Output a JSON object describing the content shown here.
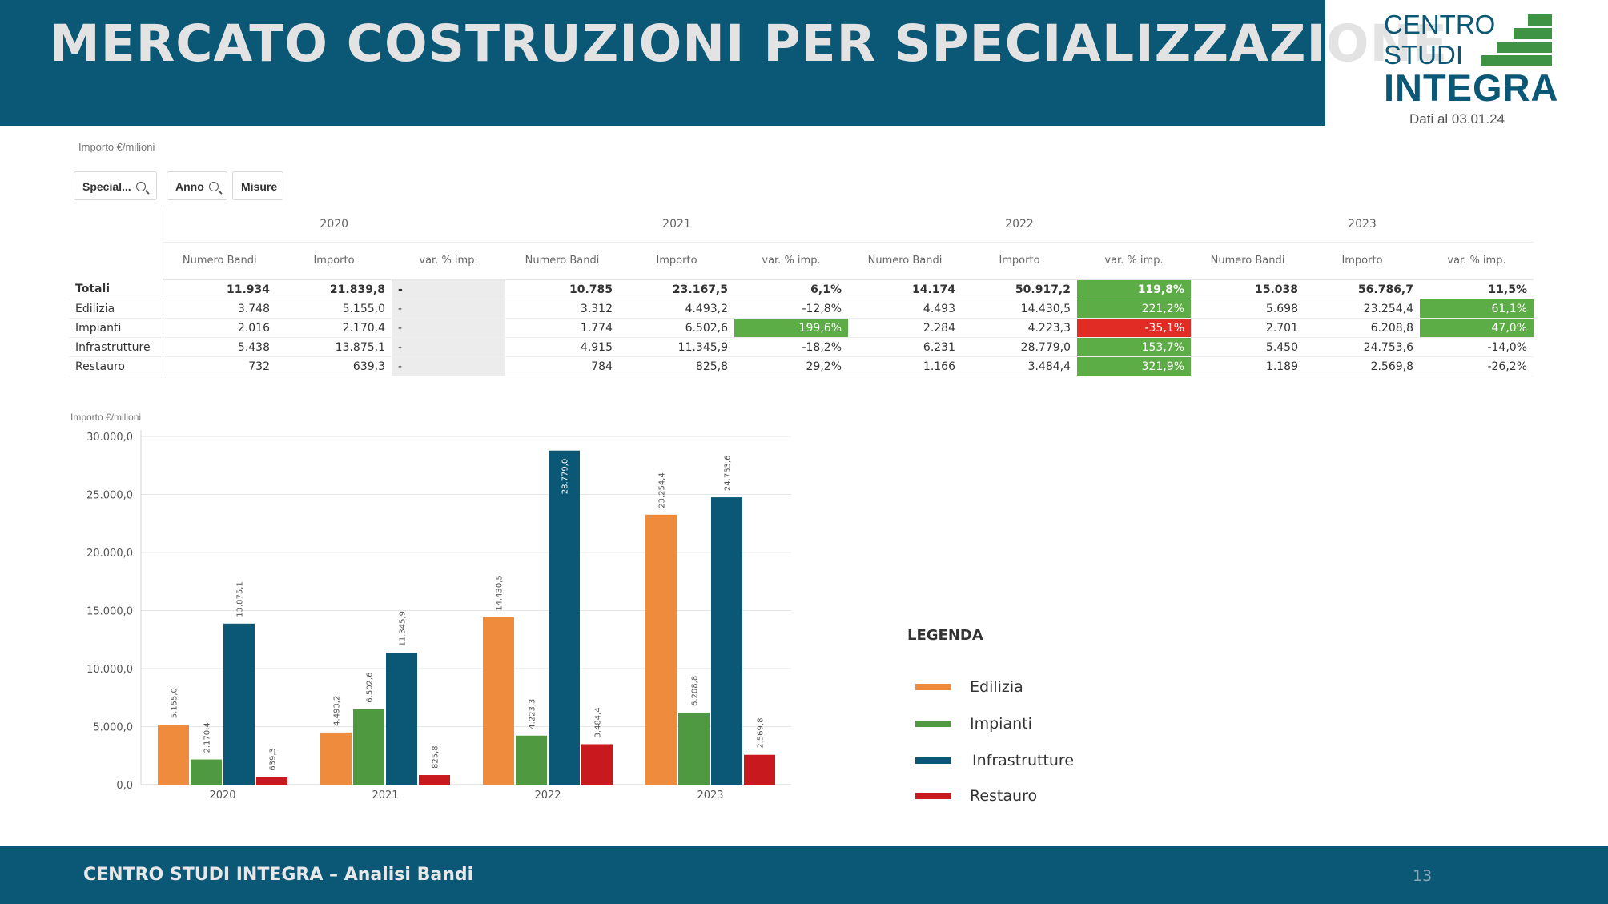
{
  "header": {
    "title": "MERCATO COSTRUZIONI PER SPECIALIZZAZIONE"
  },
  "logo": {
    "line1": "CENTRO",
    "line2": "STUDI",
    "line3": "INTEGRA",
    "date": "Dati al 03.01.24",
    "color": "#0b5876",
    "block_color": "#3f9345"
  },
  "table_section": {
    "unit_label": "Importo €/milioni",
    "toolbar": {
      "special_label": "Special...",
      "anno_label": "Anno",
      "misure_label": "Misure"
    },
    "years": [
      "2020",
      "2021",
      "2022",
      "2023"
    ],
    "subheaders": [
      "Numero Bandi",
      "Importo",
      "var. % imp."
    ],
    "rows": [
      {
        "label": "Totali",
        "cells": [
          {
            "nb": "11.934",
            "imp": "21.839,8",
            "var": "-",
            "status": "none"
          },
          {
            "nb": "10.785",
            "imp": "23.167,5",
            "var": "6,1%",
            "status": "none"
          },
          {
            "nb": "14.174",
            "imp": "50.917,2",
            "var": "119,8%",
            "status": "pos"
          },
          {
            "nb": "15.038",
            "imp": "56.786,7",
            "var": "11,5%",
            "status": "none"
          }
        ]
      },
      {
        "label": "Edilizia",
        "cells": [
          {
            "nb": "3.748",
            "imp": "5.155,0",
            "var": "-",
            "status": "none"
          },
          {
            "nb": "3.312",
            "imp": "4.493,2",
            "var": "-12,8%",
            "status": "none"
          },
          {
            "nb": "4.493",
            "imp": "14.430,5",
            "var": "221,2%",
            "status": "pos"
          },
          {
            "nb": "5.698",
            "imp": "23.254,4",
            "var": "61,1%",
            "status": "pos"
          }
        ]
      },
      {
        "label": "Impianti",
        "cells": [
          {
            "nb": "2.016",
            "imp": "2.170,4",
            "var": "-",
            "status": "none"
          },
          {
            "nb": "1.774",
            "imp": "6.502,6",
            "var": "199,6%",
            "status": "pos"
          },
          {
            "nb": "2.284",
            "imp": "4.223,3",
            "var": "-35,1%",
            "status": "neg"
          },
          {
            "nb": "2.701",
            "imp": "6.208,8",
            "var": "47,0%",
            "status": "pos"
          }
        ]
      },
      {
        "label": "Infrastrutture",
        "cells": [
          {
            "nb": "5.438",
            "imp": "13.875,1",
            "var": "-",
            "status": "none"
          },
          {
            "nb": "4.915",
            "imp": "11.345,9",
            "var": "-18,2%",
            "status": "none"
          },
          {
            "nb": "6.231",
            "imp": "28.779,0",
            "var": "153,7%",
            "status": "pos"
          },
          {
            "nb": "5.450",
            "imp": "24.753,6",
            "var": "-14,0%",
            "status": "none"
          }
        ]
      },
      {
        "label": "Restauro",
        "cells": [
          {
            "nb": "732",
            "imp": "639,3",
            "var": "-",
            "status": "none"
          },
          {
            "nb": "784",
            "imp": "825,8",
            "var": "29,2%",
            "status": "none"
          },
          {
            "nb": "1.166",
            "imp": "3.484,4",
            "var": "321,9%",
            "status": "pos"
          },
          {
            "nb": "1.189",
            "imp": "2.569,8",
            "var": "-26,2%",
            "status": "none"
          }
        ]
      }
    ],
    "colors": {
      "positive": "#5cad45",
      "negative": "#e12b25"
    }
  },
  "chart_data": {
    "type": "bar",
    "ylabel": "Importo €/milioni",
    "categories": [
      "2020",
      "2021",
      "2022",
      "2023"
    ],
    "ylim": [
      0,
      30000
    ],
    "yticks": [
      0,
      5000,
      10000,
      15000,
      20000,
      25000,
      30000
    ],
    "ytick_labels": [
      "0,0",
      "5.000,0",
      "10.000,0",
      "15.000,0",
      "20.000,0",
      "25.000,0",
      "30.000,0"
    ],
    "grid": true,
    "series": [
      {
        "name": "Edilizia",
        "color": "#ef8b3c",
        "values": [
          5155.0,
          4493.2,
          14430.5,
          23254.4
        ],
        "labels": [
          "5.155,0",
          "4.493,2",
          "14.430,5",
          "23.254,4"
        ]
      },
      {
        "name": "Impianti",
        "color": "#4f9a40",
        "values": [
          2170.4,
          6502.6,
          4223.3,
          6208.8
        ],
        "labels": [
          "2.170,4",
          "6.502,6",
          "4.223,3",
          "6.208,8"
        ]
      },
      {
        "name": "Infrastrutture",
        "color": "#0b5876",
        "values": [
          13875.1,
          11345.9,
          28779.0,
          24753.6
        ],
        "labels": [
          "13.875,1",
          "11.345,9",
          "28.779,0",
          "24.753,6"
        ]
      },
      {
        "name": "Restauro",
        "color": "#c7191e",
        "values": [
          639.3,
          825.8,
          3484.4,
          2569.8
        ],
        "labels": [
          "639,3",
          "825,8",
          "3.484,4",
          "2.569,8"
        ]
      }
    ]
  },
  "legend": {
    "title": "LEGENDA",
    "placement": "right"
  },
  "footer": {
    "text": "CENTRO STUDI INTEGRA – Analisi Bandi",
    "page": "13"
  }
}
